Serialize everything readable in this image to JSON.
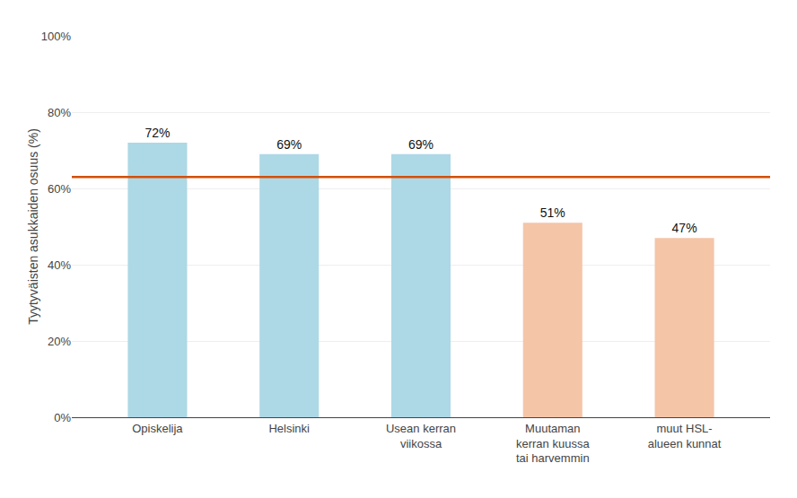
{
  "chart_data": {
    "type": "bar",
    "categories": [
      "Opiskelija",
      "Helsinki",
      "Usean kerran\nviikossa",
      "Muutaman\nkerran kuussa\ntai harvemmin",
      "muut HSL-\nalueen kunnat"
    ],
    "values": [
      72,
      69,
      69,
      51,
      47
    ],
    "value_labels": [
      "72%",
      "69%",
      "69%",
      "51%",
      "47%"
    ],
    "data_labels": true,
    "colors": [
      "#ADD8E6",
      "#ADD8E6",
      "#ADD8E6",
      "#F5C5A8",
      "#F5C5A8"
    ],
    "reference_line": {
      "value": 63,
      "color": "#D2500A"
    },
    "ylabel": "Tyytyväisten asukkaiden osuus (%)",
    "ylim": [
      0,
      100
    ],
    "yticks": [
      {
        "value": 0,
        "label": "0%"
      },
      {
        "value": 20,
        "label": "20%"
      },
      {
        "value": 40,
        "label": "40%"
      },
      {
        "value": 60,
        "label": "60%"
      },
      {
        "value": 80,
        "label": "80%"
      },
      {
        "value": 100,
        "label": "100%"
      }
    ],
    "grid": true
  }
}
